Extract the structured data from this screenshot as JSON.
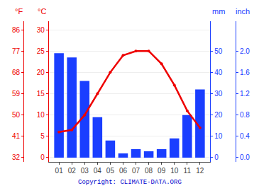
{
  "chart_data": {
    "type": "bar",
    "categories": [
      "01",
      "02",
      "03",
      "04",
      "05",
      "06",
      "07",
      "08",
      "09",
      "10",
      "11",
      "12"
    ],
    "series": [
      {
        "type": "bar",
        "color": "#1a3eff",
        "axis": "y2",
        "values": [
          49,
          47,
          36,
          19,
          8,
          2,
          4,
          3,
          4,
          9,
          20,
          32
        ]
      },
      {
        "type": "line",
        "color": "#ee0000",
        "marker": "circle",
        "values": [
          6.0,
          6.5,
          10.0,
          15.0,
          20.0,
          24.0,
          25.0,
          25.0,
          22.0,
          17.0,
          11.0,
          7.0
        ]
      }
    ],
    "ylabel": "°C",
    "ylim": [
      -1,
      32
    ],
    "yticks": [
      0,
      5,
      10,
      15,
      20,
      25,
      30
    ],
    "y2label": "mm",
    "y2lim": [
      -2,
      64
    ],
    "y2ticks": [
      0,
      10,
      20,
      30,
      40,
      50
    ],
    "y3label": "°F",
    "y3lim": [
      -1,
      32
    ],
    "y3ticks": [
      {
        "value": 0,
        "label": "32"
      },
      {
        "value": 5,
        "label": "41"
      },
      {
        "value": 10,
        "label": "50"
      },
      {
        "value": 15,
        "label": "59"
      },
      {
        "value": 20,
        "label": "68"
      },
      {
        "value": 25,
        "label": "77"
      },
      {
        "value": 30,
        "label": "86"
      }
    ],
    "y4label": "inch",
    "y4lim": [
      -2,
      64
    ],
    "y4ticks": [
      {
        "value": 0,
        "label": "0.0"
      },
      {
        "value": 10,
        "label": "0.4"
      },
      {
        "value": 20,
        "label": "0.8"
      },
      {
        "value": 30,
        "label": "1.2"
      },
      {
        "value": 40,
        "label": "1.6"
      },
      {
        "value": 50,
        "label": "2.0"
      }
    ],
    "grid": true,
    "annotations": [
      {
        "text": "Copyright: CLIMATE-DATA.ORG",
        "color": "#0000cc"
      }
    ]
  }
}
